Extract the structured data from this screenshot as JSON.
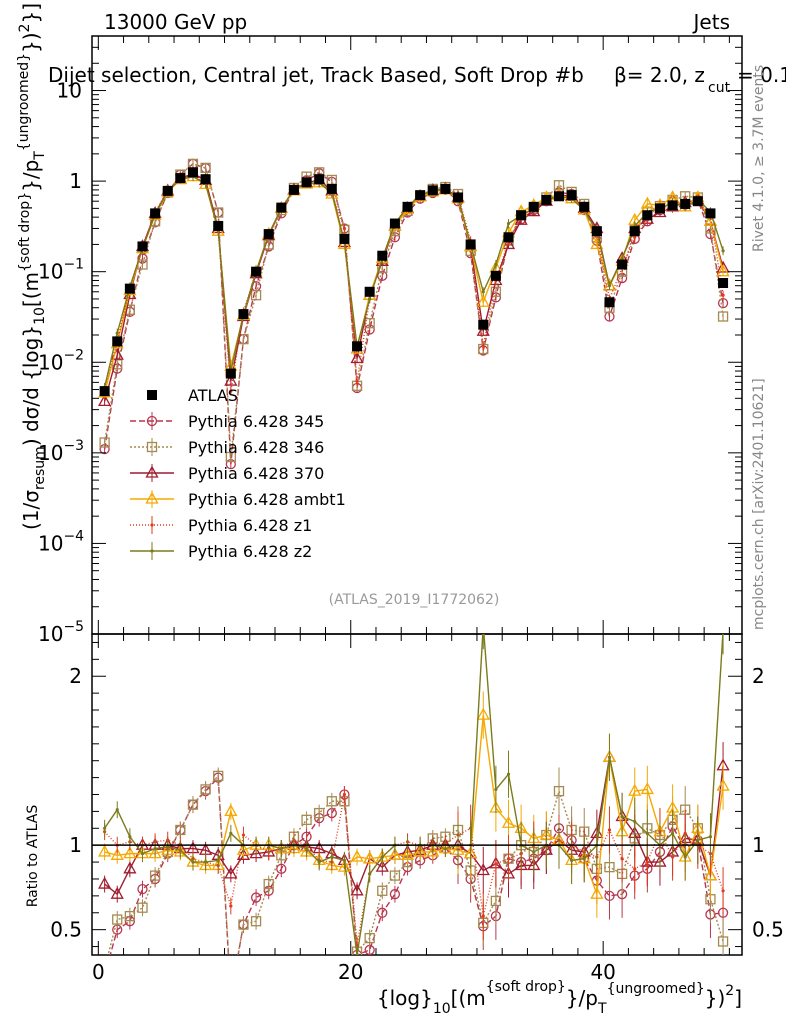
{
  "header": {
    "energy": "13000 GeV pp",
    "process": "Jets",
    "selection": "Dijet selection, Central jet, Track Based, Soft Drop #b",
    "beta_text": "= 2.0, z",
    "zcut_sub": "cut",
    "zcut_val": "= 0.1",
    "beta_symbol": "β"
  },
  "side_labels": {
    "rivet": "Rivet 4.1.0, ≥ 3.7M events",
    "mcplots": "mcplots.cern.ch [arXiv:2401.10621]"
  },
  "watermark": "(ATLAS_2019_I1772062)",
  "axes": {
    "y_main_label_prefix": "(1/σ",
    "y_main_label_sub": "resum",
    "y_main_label_suffix": ") dσ/d {log}",
    "y_main_label_sub2": "10",
    "y_main_label_tail": "[(m",
    "y_main_label_sup": "{soft drop}",
    "y_main_label_mid": "}/p",
    "y_main_label_sub3": "T",
    "y_main_label_sup2": "{ungroomed}",
    "y_main_label_end": "})",
    "y_main_label_sup3": "2",
    "y_main_label_close": "}]",
    "y_ratio_label": "Ratio to ATLAS",
    "x_label_main": "{log}",
    "x_label_sub": "10",
    "x_label_a": "[(m",
    "x_label_sup_a": "{soft drop}",
    "x_label_b": "}/p",
    "x_label_sub_b": "T",
    "x_label_sup_b": "{ungroomed}",
    "x_label_c": "})",
    "x_label_sup_c": "2",
    "x_label_d": "]"
  },
  "chart_data": {
    "type": "line",
    "main": {
      "yscale": "log",
      "ylim": [
        1e-05,
        40
      ],
      "y_ticks": [
        {
          "value": 10,
          "label": "10"
        },
        {
          "value": 1,
          "label": "1"
        },
        {
          "value": 0.1,
          "label": "10",
          "exp": "−1"
        },
        {
          "value": 0.01,
          "label": "10",
          "exp": "−2"
        },
        {
          "value": 0.001,
          "label": "10",
          "exp": "−3"
        },
        {
          "value": 0.0001,
          "label": "10",
          "exp": "−4"
        },
        {
          "value": 1e-05,
          "label": "10",
          "exp": "−5"
        }
      ]
    },
    "ratio": {
      "ylim": [
        0.35,
        2.25
      ],
      "y_ticks": [
        {
          "value": 0.5,
          "label": "0.5"
        },
        {
          "value": 1,
          "label": "1"
        },
        {
          "value": 2,
          "label": "2"
        }
      ]
    },
    "xlim": [
      -0.5,
      51
    ],
    "x_ticks": [
      {
        "value": 0,
        "label": "0"
      },
      {
        "value": 20,
        "label": "20"
      },
      {
        "value": 40,
        "label": "40"
      }
    ],
    "x": [
      0.5,
      1.5,
      2.5,
      3.5,
      4.5,
      5.5,
      6.5,
      7.5,
      8.5,
      9.5,
      10.5,
      11.5,
      12.5,
      13.5,
      14.5,
      15.5,
      16.5,
      17.5,
      18.5,
      19.5,
      20.5,
      21.5,
      22.5,
      23.5,
      24.5,
      25.5,
      26.5,
      27.5,
      28.5,
      29.5,
      30.5,
      31.5,
      32.5,
      33.5,
      34.5,
      35.5,
      36.5,
      37.5,
      38.5,
      39.5,
      40.5,
      41.5,
      42.5,
      43.5,
      44.5,
      45.5,
      46.5,
      47.5,
      48.5,
      49.5
    ],
    "data": {
      "name": "ATLAS",
      "color": "#000000",
      "values": [
        0.0048,
        0.017,
        0.065,
        0.19,
        0.44,
        0.78,
        1.08,
        1.25,
        1.05,
        0.32,
        0.0075,
        0.034,
        0.1,
        0.26,
        0.51,
        0.8,
        0.97,
        1.05,
        0.82,
        0.23,
        0.015,
        0.06,
        0.15,
        0.34,
        0.52,
        0.7,
        0.79,
        0.82,
        0.66,
        0.2,
        0.026,
        0.09,
        0.24,
        0.42,
        0.52,
        0.62,
        0.68,
        0.7,
        0.52,
        0.28,
        0.046,
        0.12,
        0.28,
        0.42,
        0.5,
        0.54,
        0.56,
        0.6,
        0.44,
        0.075
      ]
    },
    "series": [
      {
        "name": "Pythia 6.428 345",
        "color": "#b8364e",
        "dash": "6,3",
        "marker": "circle",
        "values": [
          0.0011,
          0.0085,
          0.036,
          0.14,
          0.35,
          0.74,
          1.18,
          1.55,
          1.39,
          0.45,
          0.00075,
          0.018,
          0.069,
          0.19,
          0.44,
          0.8,
          1.02,
          1.22,
          0.98,
          0.3,
          0.0052,
          0.023,
          0.09,
          0.24,
          0.45,
          0.64,
          0.74,
          0.8,
          0.6,
          0.16,
          0.0135,
          0.052,
          0.22,
          0.38,
          0.48,
          0.6,
          0.75,
          0.72,
          0.48,
          0.22,
          0.032,
          0.085,
          0.23,
          0.36,
          0.48,
          0.6,
          0.55,
          0.62,
          0.26,
          0.045
        ],
        "ratio": [
          0.23,
          0.5,
          0.55,
          0.74,
          0.8,
          0.95,
          1.09,
          1.24,
          1.32,
          1.4,
          0.1,
          0.53,
          0.69,
          0.73,
          0.86,
          1.0,
          1.05,
          1.16,
          1.19,
          1.3,
          0.35,
          0.38,
          0.6,
          0.71,
          0.87,
          0.91,
          0.94,
          0.98,
          0.91,
          0.8,
          0.52,
          0.58,
          0.92,
          0.9,
          0.92,
          0.97,
          1.1,
          1.03,
          0.92,
          0.79,
          0.7,
          0.71,
          0.82,
          0.86,
          0.96,
          1.11,
          0.98,
          1.03,
          0.59,
          0.6
        ]
      },
      {
        "name": "Pythia 6.428 346",
        "color": "#a58a50",
        "dash": "2,2",
        "marker": "square",
        "values": [
          0.0013,
          0.0095,
          0.038,
          0.12,
          0.36,
          0.75,
          1.18,
          1.55,
          1.4,
          0.45,
          0.0009,
          0.018,
          0.055,
          0.2,
          0.48,
          0.84,
          1.12,
          1.25,
          1.03,
          0.29,
          0.0055,
          0.027,
          0.11,
          0.28,
          0.47,
          0.68,
          0.82,
          0.86,
          0.72,
          0.17,
          0.014,
          0.06,
          0.22,
          0.42,
          0.5,
          0.66,
          0.9,
          0.76,
          0.56,
          0.24,
          0.04,
          0.1,
          0.29,
          0.46,
          0.53,
          0.62,
          0.68,
          0.66,
          0.3,
          0.032
        ],
        "ratio": [
          0.27,
          0.56,
          0.58,
          0.63,
          0.82,
          0.96,
          1.09,
          1.24,
          1.33,
          1.41,
          0.12,
          0.53,
          0.55,
          0.77,
          0.94,
          1.05,
          1.15,
          1.19,
          1.26,
          1.26,
          0.37,
          0.45,
          0.73,
          0.82,
          0.9,
          0.97,
          1.04,
          1.05,
          1.09,
          0.85,
          0.54,
          0.67,
          0.92,
          1.0,
          0.96,
          1.06,
          1.32,
          1.09,
          1.08,
          0.86,
          0.87,
          0.83,
          1.04,
          1.1,
          1.06,
          1.15,
          1.21,
          1.1,
          0.68,
          0.43
        ]
      },
      {
        "name": "Pythia 6.428 370",
        "color": "#a01c2e",
        "dash": "",
        "marker": "triangle",
        "values": [
          0.0037,
          0.012,
          0.056,
          0.19,
          0.44,
          0.78,
          1.06,
          1.22,
          1.02,
          0.3,
          0.0062,
          0.032,
          0.095,
          0.25,
          0.5,
          0.8,
          0.96,
          1.03,
          0.78,
          0.21,
          0.011,
          0.055,
          0.13,
          0.32,
          0.5,
          0.68,
          0.79,
          0.82,
          0.66,
          0.19,
          0.022,
          0.08,
          0.2,
          0.37,
          0.46,
          0.6,
          0.7,
          0.68,
          0.5,
          0.3,
          0.07,
          0.14,
          0.3,
          0.38,
          0.45,
          0.52,
          0.58,
          0.62,
          0.36,
          0.11
        ],
        "ratio": [
          0.77,
          0.71,
          0.86,
          1.0,
          1.0,
          1.0,
          0.98,
          0.98,
          0.97,
          0.94,
          0.83,
          0.94,
          0.95,
          0.96,
          0.98,
          1.0,
          0.99,
          0.98,
          0.95,
          0.91,
          0.73,
          0.92,
          0.87,
          0.94,
          0.96,
          0.97,
          1.0,
          1.0,
          1.0,
          0.95,
          0.85,
          0.89,
          0.83,
          0.88,
          0.88,
          0.97,
          1.03,
          0.97,
          0.96,
          1.07,
          1.52,
          1.17,
          1.07,
          0.9,
          0.9,
          0.96,
          1.04,
          1.03,
          0.82,
          1.47
        ]
      },
      {
        "name": "Pythia 6.428 ambt1",
        "color": "#f5a800",
        "dash": "",
        "marker": "triangle",
        "values": [
          0.0046,
          0.016,
          0.062,
          0.18,
          0.42,
          0.76,
          1.04,
          1.12,
          0.92,
          0.28,
          0.009,
          0.033,
          0.1,
          0.26,
          0.5,
          0.78,
          0.93,
          0.96,
          0.72,
          0.2,
          0.014,
          0.055,
          0.14,
          0.32,
          0.49,
          0.67,
          0.76,
          0.8,
          0.64,
          0.19,
          0.046,
          0.11,
          0.27,
          0.46,
          0.54,
          0.66,
          0.7,
          0.64,
          0.48,
          0.2,
          0.07,
          0.13,
          0.37,
          0.56,
          0.54,
          0.66,
          0.52,
          0.66,
          0.36,
          0.1
        ],
        "ratio": [
          0.96,
          0.94,
          0.95,
          0.95,
          0.95,
          0.97,
          0.96,
          0.9,
          0.88,
          0.88,
          1.2,
          0.97,
          1.0,
          1.0,
          0.98,
          0.98,
          0.96,
          0.91,
          0.88,
          0.87,
          0.93,
          0.92,
          0.93,
          0.94,
          0.94,
          0.96,
          0.96,
          0.98,
          0.97,
          0.95,
          1.77,
          1.22,
          1.13,
          1.1,
          1.04,
          1.06,
          1.03,
          0.91,
          0.92,
          0.71,
          1.52,
          1.08,
          1.32,
          1.33,
          1.08,
          1.22,
          0.93,
          1.1,
          0.82,
          1.35
        ]
      },
      {
        "name": "Pythia 6.428 z1",
        "color": "#e03b1e",
        "dash": "1,2",
        "marker": "dot",
        "values": [
          0.0052,
          0.017,
          0.066,
          0.19,
          0.45,
          0.8,
          1.08,
          1.15,
          0.95,
          0.28,
          0.0048,
          0.036,
          0.1,
          0.25,
          0.5,
          0.82,
          0.97,
          0.96,
          0.74,
          0.3,
          0.0062,
          0.05,
          0.14,
          0.34,
          0.53,
          0.7,
          0.8,
          0.83,
          0.7,
          0.22,
          0.015,
          0.08,
          0.22,
          0.4,
          0.52,
          0.62,
          0.7,
          0.7,
          0.5,
          0.26,
          0.05,
          0.11,
          0.24,
          0.38,
          0.54,
          0.5,
          0.6,
          0.6,
          0.42,
          0.055
        ],
        "ratio": [
          1.08,
          1.0,
          1.02,
          1.0,
          1.02,
          1.03,
          1.0,
          0.92,
          0.9,
          0.88,
          0.64,
          1.06,
          1.0,
          0.96,
          0.98,
          1.03,
          1.0,
          0.91,
          0.9,
          1.3,
          0.41,
          0.83,
          0.93,
          1.0,
          1.02,
          1.0,
          1.01,
          1.01,
          1.06,
          1.1,
          0.58,
          0.89,
          0.92,
          0.95,
          1.0,
          1.0,
          1.03,
          1.0,
          0.96,
          0.93,
          1.09,
          0.92,
          0.86,
          0.9,
          1.08,
          0.93,
          1.07,
          1.0,
          0.95,
          0.73
        ]
      },
      {
        "name": "Pythia 6.428 z2",
        "color": "#7b7b1c",
        "dash": "",
        "marker": "dot",
        "values": [
          0.0053,
          0.021,
          0.068,
          0.18,
          0.43,
          0.77,
          1.05,
          1.12,
          0.94,
          0.29,
          0.008,
          0.034,
          0.1,
          0.26,
          0.5,
          0.8,
          0.95,
          0.95,
          0.76,
          0.21,
          0.015,
          0.05,
          0.14,
          0.34,
          0.52,
          0.7,
          0.79,
          0.8,
          0.66,
          0.2,
          0.06,
          0.12,
          0.34,
          0.42,
          0.5,
          0.62,
          0.68,
          0.64,
          0.48,
          0.28,
          0.07,
          0.14,
          0.32,
          0.45,
          0.5,
          0.58,
          0.52,
          0.62,
          0.46,
          0.17
        ],
        "ratio": [
          1.1,
          1.21,
          1.05,
          0.95,
          0.98,
          0.99,
          0.97,
          0.9,
          0.9,
          0.91,
          1.07,
          1.0,
          1.0,
          1.0,
          0.98,
          1.0,
          0.98,
          0.9,
          0.93,
          0.91,
          0.35,
          0.83,
          0.93,
          1.0,
          1.0,
          1.0,
          1.0,
          0.98,
          1.0,
          1.0,
          2.3,
          1.33,
          1.42,
          1.0,
          0.96,
          1.0,
          1.0,
          0.91,
          0.92,
          1.0,
          1.52,
          1.17,
          1.14,
          1.07,
          1.0,
          1.07,
          0.93,
          1.03,
          1.05,
          2.27
        ]
      }
    ]
  }
}
